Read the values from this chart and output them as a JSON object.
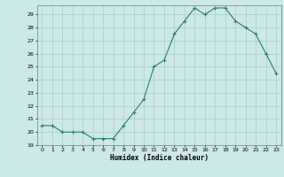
{
  "x": [
    0,
    1,
    2,
    3,
    4,
    5,
    6,
    7,
    8,
    9,
    10,
    11,
    12,
    13,
    14,
    15,
    16,
    17,
    18,
    19,
    20,
    21,
    22,
    23
  ],
  "y": [
    20.5,
    20.5,
    20.0,
    20.0,
    20.0,
    19.5,
    19.5,
    19.5,
    20.5,
    21.5,
    22.5,
    25.0,
    25.5,
    27.5,
    28.5,
    29.5,
    29.0,
    29.5,
    29.5,
    28.5,
    28.0,
    27.5,
    26.0,
    24.5
  ],
  "ylim": [
    19,
    29.5
  ],
  "xlim": [
    -0.5,
    23.5
  ],
  "yticks": [
    19,
    20,
    21,
    22,
    23,
    24,
    25,
    26,
    27,
    28,
    29
  ],
  "xticks": [
    0,
    1,
    2,
    3,
    4,
    5,
    6,
    7,
    8,
    9,
    10,
    11,
    12,
    13,
    14,
    15,
    16,
    17,
    18,
    19,
    20,
    21,
    22,
    23
  ],
  "xlabel": "Humidex (Indice chaleur)",
  "line_color": "#2e7d6e",
  "marker": "+",
  "bg_color": "#cce8e8",
  "grid_color": "#aacccc"
}
